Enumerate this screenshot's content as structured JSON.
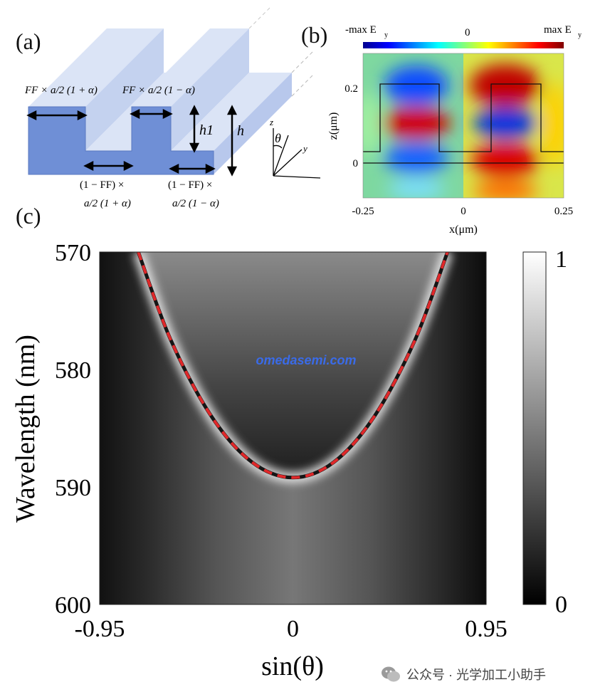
{
  "panels": {
    "a": {
      "label": "(a)"
    },
    "b": {
      "label": "(b)"
    },
    "c": {
      "label": "(c)"
    }
  },
  "panel_a": {
    "annotations": {
      "top_left": "FF × a/2 (1 + α)",
      "top_mid": "FF × a/2 (1 − α)",
      "bottom_left_1": "(1 − FF) ×",
      "bottom_left_2": "a/2 (1 + α)",
      "bottom_right_1": "(1 − FF) ×",
      "bottom_right_2": "a/2 (1 − α)",
      "h1": "h1",
      "h": "h"
    },
    "axes_labels": {
      "z": "z",
      "theta": "θ",
      "y": "y"
    }
  },
  "panel_b": {
    "colorbar": {
      "min": "-max E",
      "mid": "0",
      "max": "max E",
      "subscript": "y"
    },
    "xlabel": "x(μm)",
    "ylabel": "z(μm)",
    "xticks": [
      "-0.25",
      "0",
      "0.25"
    ],
    "yticks": [
      "0.2",
      "0"
    ]
  },
  "colors": {
    "dashed_curve": "#e0282a",
    "grating_blue": "#6f8fd6",
    "grating_light": "#c9d6f2",
    "watermark_blue": "#3a6be8"
  },
  "chart_data": {
    "type": "heatmap",
    "title": "",
    "xlabel": "sin(θ)",
    "ylabel": "Wavelength (nm)",
    "xlim": [
      -0.95,
      0.95
    ],
    "ylim": [
      600,
      570
    ],
    "xticks": [
      "-0.95",
      "0",
      "0.95"
    ],
    "yticks": [
      "570",
      "580",
      "590",
      "600"
    ],
    "colorbar": {
      "min": "0",
      "max": "1",
      "colormap": "gray"
    },
    "dashed_curve": {
      "x": [
        -0.76,
        -0.6,
        -0.4,
        -0.2,
        0.0,
        0.2,
        0.4,
        0.6,
        0.76
      ],
      "y": [
        570,
        577.5,
        584,
        587.9,
        589.2,
        587.9,
        584,
        577.5,
        570
      ]
    }
  },
  "watermark": {
    "text": "omedasemi.com"
  },
  "footer": {
    "wechat": "公众号 · 光学加工小助手"
  }
}
